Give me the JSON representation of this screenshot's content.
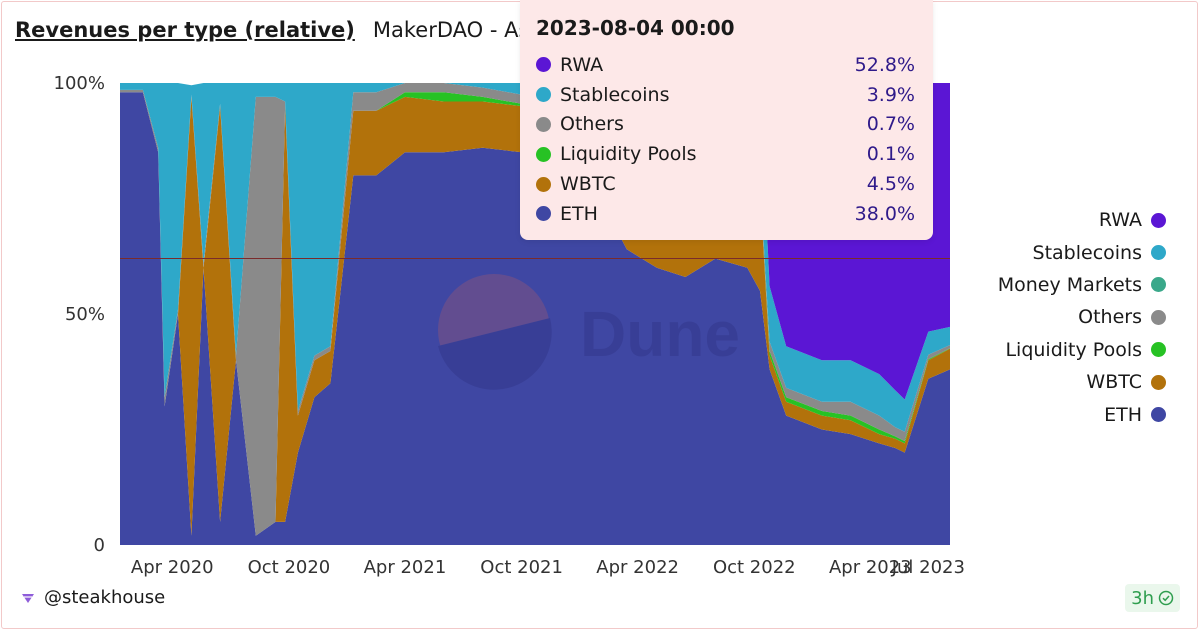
{
  "header": {
    "title": "Revenues per type (relative)",
    "subtitle": "MakerDAO - Assets"
  },
  "watermark": "Dune",
  "footer": {
    "user": "@steakhouse",
    "badge": "3h"
  },
  "colors": {
    "RWA": "#5b16d4",
    "Stablecoins": "#2ea8c9",
    "Money Markets": "#3aa88a",
    "Others": "#8a8a8a",
    "Liquidity Pools": "#27c224",
    "WBTC": "#b2720b",
    "ETH": "#3f47a3"
  },
  "legend": [
    "RWA",
    "Stablecoins",
    "Money Markets",
    "Others",
    "Liquidity Pools",
    "WBTC",
    "ETH"
  ],
  "tooltip": {
    "date": "2023-08-04 00:00",
    "rows": [
      {
        "label": "RWA",
        "value": "52.8%"
      },
      {
        "label": "Stablecoins",
        "value": "3.9%"
      },
      {
        "label": "Others",
        "value": "0.7%"
      },
      {
        "label": "Liquidity Pools",
        "value": "0.1%"
      },
      {
        "label": "WBTC",
        "value": "4.5%"
      },
      {
        "label": "ETH",
        "value": "38.0%"
      }
    ]
  },
  "chart_data": {
    "type": "area",
    "stacked": true,
    "normalized": true,
    "x_start": "2020-01-10",
    "x_end": "2023-08-04",
    "x_ticks": [
      {
        "label": "Apr 2020",
        "date": "2020-04-01"
      },
      {
        "label": "Oct 2020",
        "date": "2020-10-01"
      },
      {
        "label": "Apr 2021",
        "date": "2021-04-01"
      },
      {
        "label": "Oct 2021",
        "date": "2021-10-01"
      },
      {
        "label": "Apr 2022",
        "date": "2022-04-01"
      },
      {
        "label": "Oct 2022",
        "date": "2022-10-01"
      },
      {
        "label": "Apr 2023",
        "date": "2023-04-01"
      },
      {
        "label": "Jul 2023",
        "date": "2023-07-01"
      }
    ],
    "y_ticks": [
      {
        "label": "0",
        "value": 0
      },
      {
        "label": "50%",
        "value": 50
      },
      {
        "label": "100%",
        "value": 100
      }
    ],
    "ylim": [
      0,
      100
    ],
    "reference_line": 62,
    "dates": [
      "2020-01-10",
      "2020-02-15",
      "2020-03-10",
      "2020-03-20",
      "2020-04-10",
      "2020-05-01",
      "2020-05-20",
      "2020-06-15",
      "2020-07-10",
      "2020-08-10",
      "2020-09-10",
      "2020-09-25",
      "2020-10-15",
      "2020-11-10",
      "2020-12-05",
      "2021-01-10",
      "2021-02-15",
      "2021-04-01",
      "2021-06-01",
      "2021-08-01",
      "2021-10-01",
      "2021-12-01",
      "2022-02-01",
      "2022-03-15",
      "2022-05-01",
      "2022-06-15",
      "2022-08-01",
      "2022-09-20",
      "2022-10-10",
      "2022-10-25",
      "2022-11-20",
      "2023-01-15",
      "2023-03-01",
      "2023-04-15",
      "2023-05-10",
      "2023-05-25",
      "2023-07-01",
      "2023-08-04"
    ],
    "series": [
      {
        "name": "ETH",
        "values": [
          98,
          98,
          85,
          30,
          50,
          2,
          60,
          5,
          40,
          2,
          5,
          5,
          20,
          32,
          35,
          80,
          80,
          85,
          85,
          86,
          85,
          84,
          75,
          64,
          60,
          58,
          62,
          60,
          55,
          38,
          28,
          25,
          24,
          22,
          21,
          20,
          36,
          38
        ]
      },
      {
        "name": "WBTC",
        "values": [
          0,
          0,
          0,
          0,
          0,
          95,
          0,
          90,
          0,
          0,
          0,
          90,
          8,
          8,
          7,
          14,
          14,
          12,
          11,
          10,
          10,
          10,
          13,
          24,
          25,
          26,
          22,
          25,
          22,
          3,
          3,
          3,
          3,
          2,
          2,
          2,
          4,
          4.5
        ]
      },
      {
        "name": "Liquidity Pools",
        "values": [
          0,
          0,
          0,
          0,
          0,
          0,
          0,
          0,
          0,
          0,
          0,
          0,
          0,
          0,
          0,
          0,
          0,
          1,
          2,
          1,
          0.5,
          0.5,
          0.5,
          0.5,
          0.5,
          0.5,
          0.3,
          0.3,
          0.3,
          1,
          1,
          1,
          1,
          1,
          0.5,
          0.5,
          0.2,
          0.1
        ]
      },
      {
        "name": "Others",
        "values": [
          0.5,
          0.5,
          1,
          2,
          1,
          0.5,
          1,
          0.5,
          1,
          95,
          92,
          1,
          1,
          1,
          1,
          4,
          4,
          2,
          2,
          2,
          2,
          2,
          1.5,
          1.5,
          1.5,
          1.5,
          1.5,
          1,
          1.5,
          2,
          2,
          2,
          3,
          3,
          2,
          2,
          1,
          0.7
        ]
      },
      {
        "name": "Money Markets",
        "values": [
          0,
          0,
          0,
          0,
          0,
          0,
          0,
          0,
          0,
          0,
          0,
          0,
          0,
          0,
          0,
          0,
          0,
          0,
          0,
          0,
          0,
          0,
          0,
          0,
          0,
          0,
          0,
          0,
          0,
          0,
          0,
          0,
          0,
          0,
          0,
          0,
          0,
          0
        ]
      },
      {
        "name": "Stablecoins",
        "values": [
          1.5,
          1.5,
          14,
          68,
          49,
          2,
          39,
          4.5,
          59,
          3,
          3,
          4,
          71,
          59,
          57,
          2,
          2,
          0,
          0,
          1,
          2.5,
          3.5,
          10,
          10,
          13,
          14,
          14,
          13.7,
          21,
          12,
          9,
          9,
          9,
          9,
          8,
          7,
          5,
          3.9
        ]
      },
      {
        "name": "RWA",
        "values": [
          0,
          0,
          0,
          0,
          0,
          0,
          0,
          0,
          0,
          0,
          0,
          0,
          0,
          0,
          0,
          0,
          0,
          0,
          0,
          0,
          0,
          0,
          0,
          0,
          0,
          0,
          0,
          0,
          0,
          44,
          57,
          60,
          60,
          63,
          66.5,
          68.5,
          53.8,
          52.8
        ]
      }
    ]
  }
}
